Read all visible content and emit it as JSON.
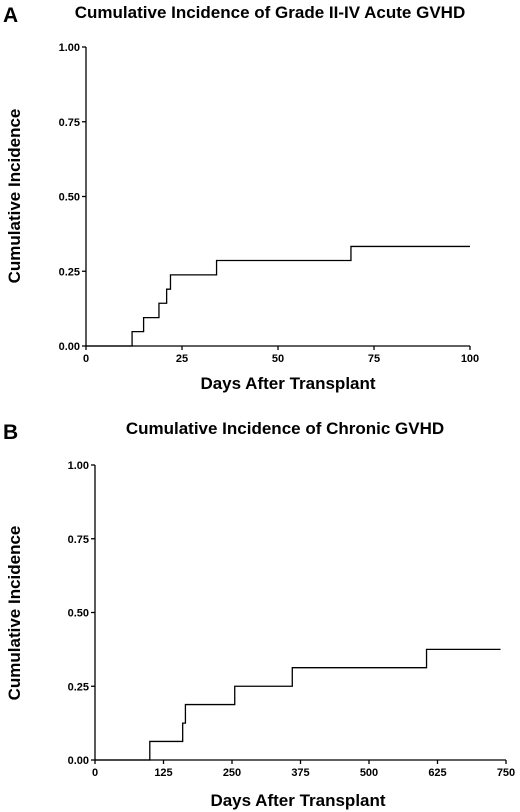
{
  "chart_data": [
    {
      "type": "line",
      "panel": "A",
      "title": "Cumulative Incidence of Grade II-IV Acute GVHD",
      "xlabel": "Days After Transplant",
      "ylabel": "Cumulative Incidence",
      "xlim": [
        0,
        100
      ],
      "ylim": [
        0,
        1
      ],
      "xticks": [
        "0",
        "25",
        "50",
        "75",
        "100"
      ],
      "yticks": [
        "0.00",
        "0.25",
        "0.50",
        "0.75",
        "1.00"
      ],
      "step_curve": true,
      "grid": false,
      "series": [
        {
          "x": [
            12,
            15,
            19,
            21,
            22,
            34,
            69,
            100
          ],
          "y": [
            0.048,
            0.095,
            0.143,
            0.19,
            0.238,
            0.286,
            0.333,
            0.333
          ]
        }
      ]
    },
    {
      "type": "line",
      "panel": "B",
      "title": "Cumulative Incidence of Chronic GVHD",
      "xlabel": "Days After Transplant",
      "ylabel": "Cumulative Incidence",
      "xlim": [
        0,
        750
      ],
      "ylim": [
        0,
        1
      ],
      "xticks": [
        "0",
        "125",
        "250",
        "375",
        "500",
        "625",
        "750"
      ],
      "yticks": [
        "0.00",
        "0.25",
        "0.50",
        "0.75",
        "1.00"
      ],
      "step_curve": true,
      "grid": false,
      "series": [
        {
          "x": [
            100,
            160,
            165,
            255,
            360,
            605,
            740
          ],
          "y": [
            0.063,
            0.125,
            0.188,
            0.25,
            0.313,
            0.375,
            0.375
          ]
        }
      ]
    }
  ]
}
